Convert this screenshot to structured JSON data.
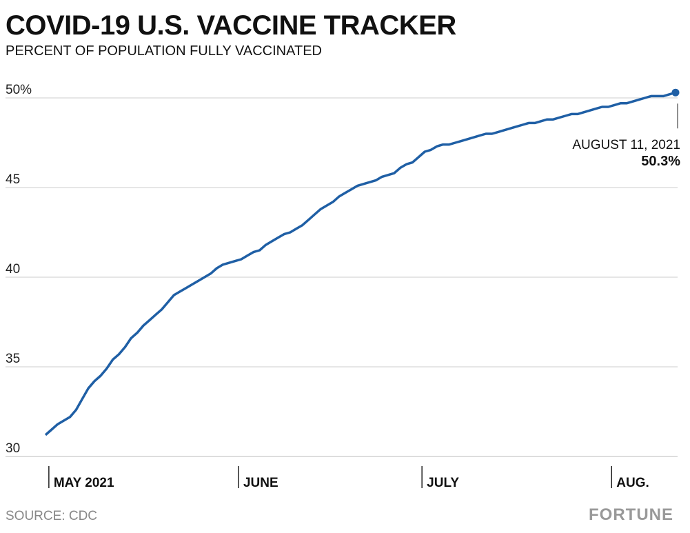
{
  "chart_data": {
    "type": "line",
    "title": "COVID-19 U.S. VACCINE TRACKER",
    "subtitle": "PERCENT OF POPULATION FULLY VACCINATED",
    "source": "SOURCE: CDC",
    "brand": "FORTUNE",
    "annotation": {
      "date": "AUGUST 11, 2021",
      "value_label": "50.3%"
    },
    "categories": [
      null,
      "MAY 2021",
      null,
      null,
      null,
      null,
      null,
      null,
      null,
      null,
      null,
      null,
      null,
      null,
      null,
      null,
      null,
      null,
      null,
      null,
      null,
      null,
      null,
      null,
      null,
      null,
      null,
      null,
      null,
      null,
      null,
      null,
      "JUNE",
      null,
      null,
      null,
      null,
      null,
      null,
      null,
      null,
      null,
      null,
      null,
      null,
      null,
      null,
      null,
      null,
      null,
      null,
      null,
      null,
      null,
      null,
      null,
      null,
      null,
      null,
      null,
      null,
      null,
      "JULY",
      null,
      null,
      null,
      null,
      null,
      null,
      null,
      null,
      null,
      null,
      null,
      null,
      null,
      null,
      null,
      null,
      null,
      null,
      null,
      null,
      null,
      null,
      null,
      null,
      null,
      null,
      null,
      null,
      null,
      null,
      "AUG.",
      null,
      null,
      null,
      null,
      null,
      null,
      null,
      null,
      null,
      null
    ],
    "series": [
      {
        "name": "Fully vaccinated",
        "color": "#1f5fa5",
        "values": [
          31.2,
          31.5,
          31.8,
          32.0,
          32.2,
          32.6,
          33.2,
          33.8,
          34.2,
          34.5,
          34.9,
          35.4,
          35.7,
          36.1,
          36.6,
          36.9,
          37.3,
          37.6,
          37.9,
          38.2,
          38.6,
          39.0,
          39.2,
          39.4,
          39.6,
          39.8,
          40.0,
          40.2,
          40.5,
          40.7,
          40.8,
          40.9,
          41.0,
          41.2,
          41.4,
          41.5,
          41.8,
          42.0,
          42.2,
          42.4,
          42.5,
          42.7,
          42.9,
          43.2,
          43.5,
          43.8,
          44.0,
          44.2,
          44.5,
          44.7,
          44.9,
          45.1,
          45.2,
          45.3,
          45.4,
          45.6,
          45.7,
          45.8,
          46.1,
          46.3,
          46.4,
          46.7,
          47.0,
          47.1,
          47.3,
          47.4,
          47.4,
          47.5,
          47.6,
          47.7,
          47.8,
          47.9,
          48.0,
          48.0,
          48.1,
          48.2,
          48.3,
          48.4,
          48.5,
          48.6,
          48.6,
          48.7,
          48.8,
          48.8,
          48.9,
          49.0,
          49.1,
          49.1,
          49.2,
          49.3,
          49.4,
          49.5,
          49.5,
          49.6,
          49.7,
          49.7,
          49.8,
          49.9,
          50.0,
          50.1,
          50.1,
          50.1,
          50.2,
          50.3
        ]
      }
    ],
    "ylim": [
      30,
      50.5
    ],
    "yticks": [
      30,
      35,
      40,
      45,
      {
        "value": 50,
        "label": "50%"
      }
    ],
    "grid": true
  }
}
